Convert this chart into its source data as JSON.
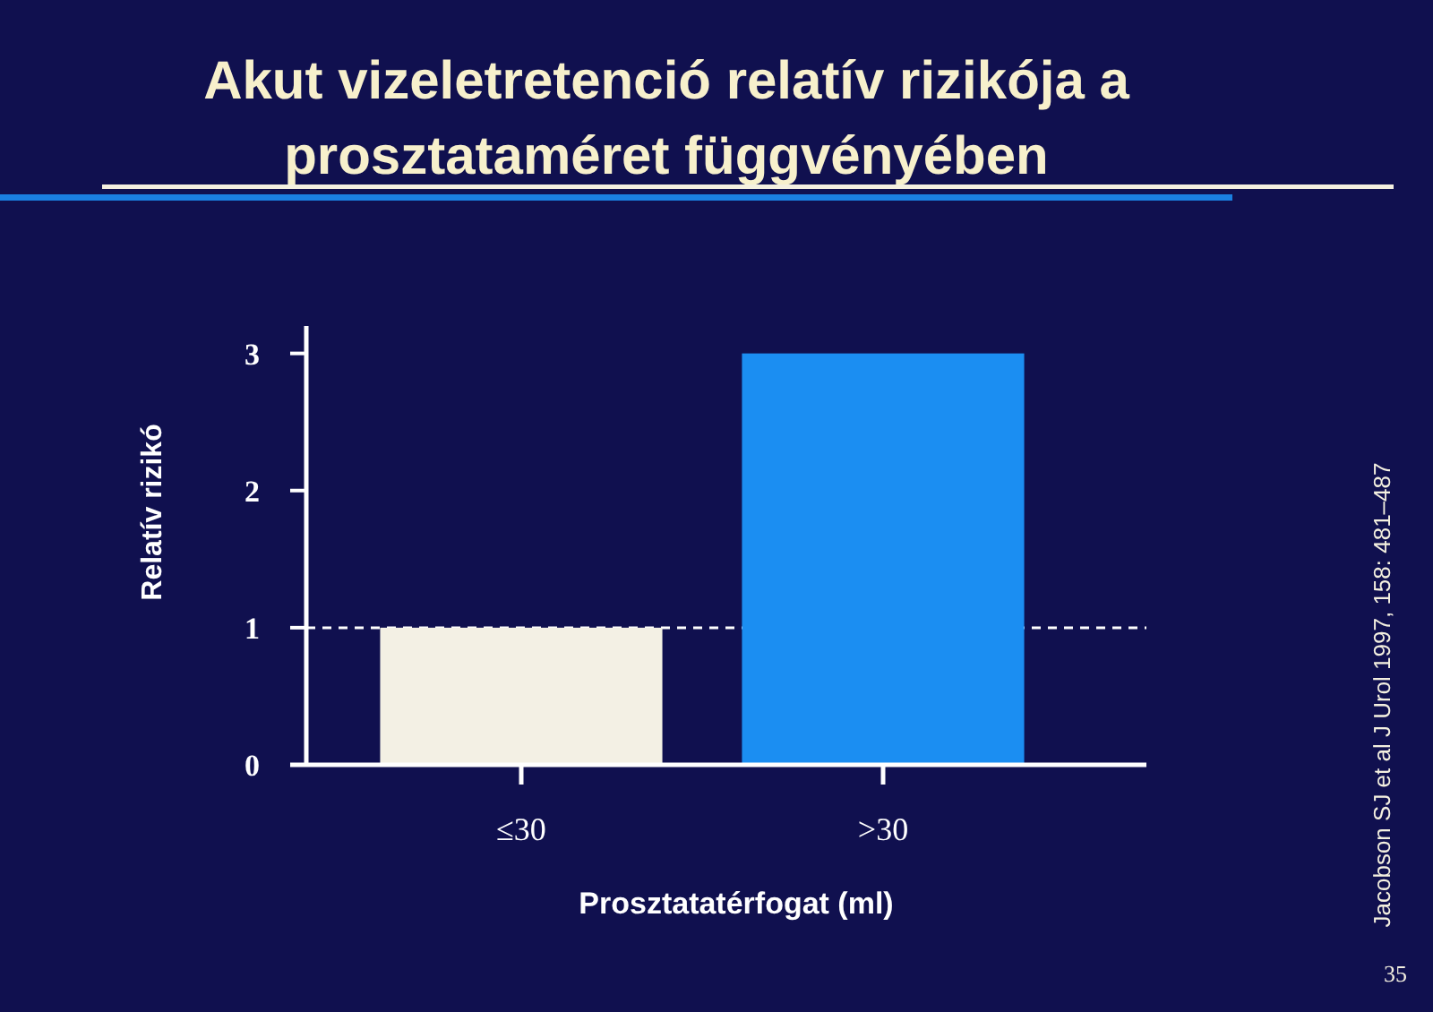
{
  "chart_data": {
    "type": "bar",
    "title": "Akut vizeletretenció relatív rizikója a\nprosztataméret függvényében",
    "xlabel": "Prosztatatérfogat (ml)",
    "ylabel": "Relatív rizikó",
    "categories": [
      "≤30",
      ">30"
    ],
    "values": [
      1,
      3
    ],
    "colors": [
      "#f3f0e4",
      "#1b8ef2"
    ],
    "ylim": [
      0,
      3.2
    ],
    "yticks": [
      0,
      1,
      2,
      3
    ],
    "ref_lines": [
      {
        "axis": "y",
        "value": 1,
        "color": "#ffffff",
        "line_style": "dashed"
      }
    ],
    "annotations": [
      "Jacobson SJ et al J Urol 1997, 158: 481–487",
      "35"
    ]
  }
}
